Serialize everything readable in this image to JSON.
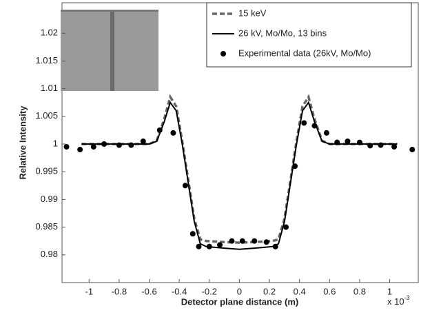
{
  "chart_data": {
    "type": "line",
    "xlabel": "Detector plane distance (m)",
    "ylabel": "Relative Intensity",
    "x_multiplier": {
      "text": "x 10",
      "exponent": "-3"
    },
    "xlim": [
      -1.18,
      1.19
    ],
    "ylim": [
      0.975,
      1.0255
    ],
    "xticks": [
      -1,
      -0.8,
      -0.6,
      -0.4,
      -0.2,
      0,
      0.2,
      0.4,
      0.6,
      0.8,
      1
    ],
    "yticks": [
      0.98,
      0.985,
      0.99,
      0.995,
      1,
      1.005,
      1.01,
      1.015,
      1.02
    ],
    "legend": "upper right",
    "series": [
      {
        "name": "15 keV",
        "color": "#666666",
        "style": "dashed",
        "x": [
          -1.05,
          -0.6,
          -0.55,
          -0.5,
          -0.46,
          -0.42,
          -0.38,
          -0.34,
          -0.3,
          -0.26,
          -0.22,
          -0.1,
          0,
          0.1,
          0.22,
          0.26,
          0.3,
          0.34,
          0.38,
          0.42,
          0.46,
          0.5,
          0.55,
          0.6,
          1.05
        ],
        "values": [
          1.0,
          1.0,
          1.0006,
          1.0045,
          1.0085,
          1.0068,
          1.0005,
          0.9935,
          0.9865,
          0.9828,
          0.9825,
          0.9823,
          0.9822,
          0.9823,
          0.9825,
          0.9828,
          0.9865,
          0.9935,
          1.0005,
          1.0068,
          1.0085,
          1.0045,
          1.0006,
          1.0,
          1.0
        ]
      },
      {
        "name": "26 kV, Mo/Mo, 13 bins",
        "color": "#000000",
        "style": "solid",
        "x": [
          -1.05,
          -0.6,
          -0.55,
          -0.5,
          -0.46,
          -0.42,
          -0.38,
          -0.34,
          -0.3,
          -0.26,
          -0.22,
          -0.1,
          0,
          0.1,
          0.22,
          0.26,
          0.3,
          0.34,
          0.38,
          0.42,
          0.46,
          0.5,
          0.55,
          0.6,
          1.05
        ],
        "values": [
          1.0,
          1.0,
          1.0005,
          1.004,
          1.0075,
          1.006,
          1.0,
          0.993,
          0.986,
          0.982,
          0.9815,
          0.9812,
          0.981,
          0.9812,
          0.9815,
          0.982,
          0.986,
          0.993,
          1.0,
          1.006,
          1.0075,
          1.004,
          1.0005,
          1.0,
          1.0
        ]
      },
      {
        "name": "Experimental data (26kV, Mo/Mo)",
        "color": "#000000",
        "style": "markers",
        "x": [
          -1.15,
          -1.06,
          -0.97,
          -0.9,
          -0.8,
          -0.72,
          -0.64,
          -0.53,
          -0.44,
          -0.36,
          -0.31,
          -0.27,
          -0.2,
          -0.13,
          -0.05,
          0.02,
          0.1,
          0.18,
          0.24,
          0.31,
          0.37,
          0.43,
          0.5,
          0.58,
          0.65,
          0.72,
          0.8,
          0.87,
          0.94,
          1.03,
          1.15
        ],
        "values": [
          0.9995,
          0.999,
          0.9995,
          1.0,
          0.9998,
          0.9998,
          1.0005,
          1.0025,
          1.002,
          0.9925,
          0.9838,
          0.9815,
          0.9815,
          0.9818,
          0.9825,
          0.9825,
          0.9825,
          0.9823,
          0.9815,
          0.985,
          0.996,
          1.0038,
          1.0033,
          1.002,
          1.0003,
          1.0005,
          1.0003,
          0.9997,
          0.9998,
          0.9995,
          0.999
        ]
      }
    ]
  }
}
